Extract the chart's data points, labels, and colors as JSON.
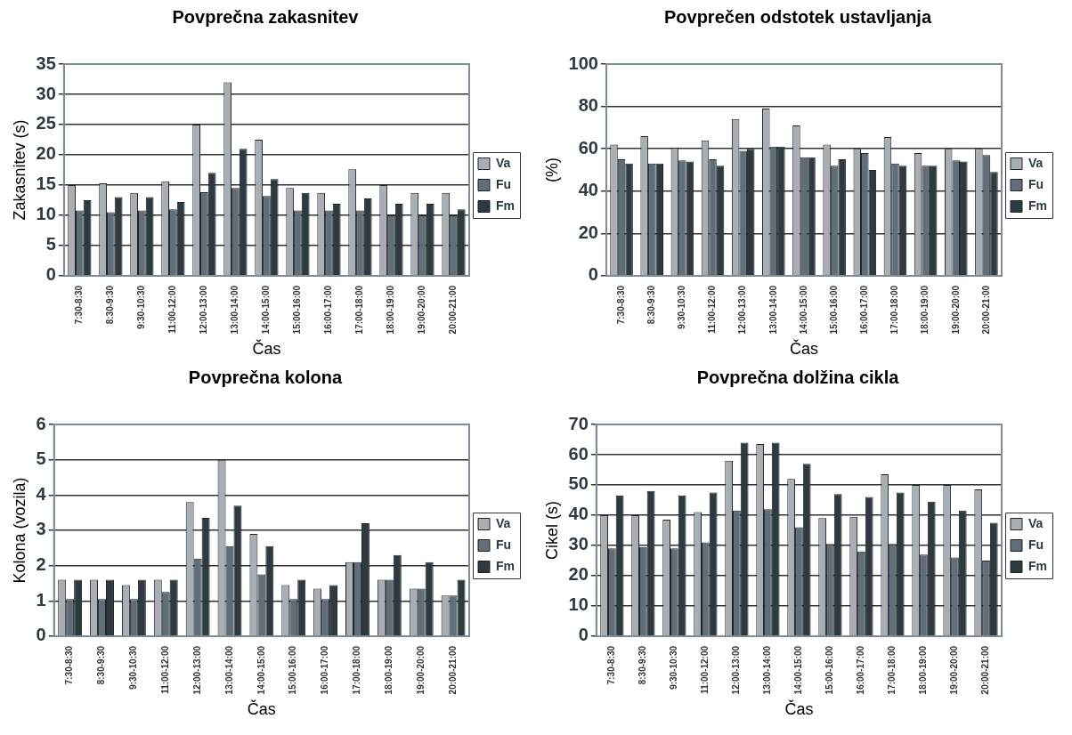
{
  "chart_data": [
    {
      "type": "bar",
      "title": "Povprečna zakasnitev",
      "xlabel": "Čas",
      "ylabel": "Zakasnitev (s)",
      "categories": [
        "7:30-8:30",
        "8:30-9:30",
        "9:30-10:30",
        "11:00-12:00",
        "12:00-13:00",
        "13:00-14:00",
        "14:00-15:00",
        "15:00-16:00",
        "16:00-17:00",
        "17:00-18:00",
        "18:00-19:00",
        "19:00-20:00",
        "20:00-21:00"
      ],
      "ylim": [
        0,
        35
      ],
      "yticks": [
        0,
        5,
        10,
        15,
        20,
        25,
        30,
        35
      ],
      "grid": "y",
      "legend": "right",
      "series": [
        {
          "name": "Va",
          "color": "#a9aeb3",
          "values": [
            15,
            15.3,
            13.7,
            15.6,
            25,
            32,
            22.5,
            14.5,
            13.7,
            17.6,
            15,
            13.7,
            13.7
          ]
        },
        {
          "name": "Fu",
          "color": "#5f6e78",
          "values": [
            10.8,
            10.5,
            10.8,
            11,
            13.8,
            14.5,
            13.2,
            10.8,
            10.8,
            10.8,
            10,
            10,
            10
          ]
        },
        {
          "name": "Fm",
          "color": "#2d3a40",
          "values": [
            12.5,
            13,
            13,
            12.2,
            17,
            21,
            16,
            13.7,
            11.9,
            12.8,
            11.9,
            11.9,
            11
          ]
        }
      ]
    },
    {
      "type": "bar",
      "title": "Povprečen odstotek ustavljanja",
      "xlabel": "Čas",
      "ylabel": "(%)",
      "categories": [
        "7:30-8:30",
        "8:30-9:30",
        "9:30-10:30",
        "11:00-12:00",
        "12:00-13:00",
        "13:00-14:00",
        "14:00-15:00",
        "15:00-16:00",
        "16:00-17:00",
        "17:00-18:00",
        "18:00-19:00",
        "19:00-20:00",
        "20:00-21:00"
      ],
      "ylim": [
        0,
        100
      ],
      "yticks": [
        0,
        20,
        40,
        60,
        80,
        100
      ],
      "grid": "y",
      "legend": "right",
      "series": [
        {
          "name": "Va",
          "color": "#a9aeb3",
          "values": [
            62,
            66,
            60.5,
            64,
            74,
            79,
            71,
            62,
            60,
            65.5,
            58,
            60,
            60
          ]
        },
        {
          "name": "Fu",
          "color": "#5f6e78",
          "values": [
            55,
            53,
            54.5,
            55,
            59,
            61,
            56,
            52,
            58,
            53,
            52,
            54.5,
            57
          ]
        },
        {
          "name": "Fm",
          "color": "#2d3a40",
          "values": [
            53,
            53,
            54,
            52,
            60,
            61,
            56,
            55,
            50,
            52,
            52,
            54,
            49
          ]
        }
      ]
    },
    {
      "type": "bar",
      "title": "Povprečna kolona",
      "xlabel": "Čas",
      "ylabel": "Kolona (vozila)",
      "categories": [
        "7:30-8:30",
        "8:30-9:30",
        "9:30-10:30",
        "11:00-12:00",
        "12:00-13:00",
        "13:00-14:00",
        "14:00-15:00",
        "15:00-16:00",
        "16:00-17:00",
        "17:00-18:00",
        "18:00-19:00",
        "19:00-20:00",
        "20:00-21:00"
      ],
      "ylim": [
        0,
        6
      ],
      "yticks": [
        0,
        1,
        2,
        3,
        4,
        5,
        6
      ],
      "grid": "y",
      "legend": "right",
      "series": [
        {
          "name": "Va",
          "color": "#a9aeb3",
          "values": [
            1.6,
            1.6,
            1.45,
            1.6,
            3.8,
            5,
            2.9,
            1.45,
            1.35,
            2.1,
            1.6,
            1.35,
            1.15
          ]
        },
        {
          "name": "Fu",
          "color": "#5f6e78",
          "values": [
            1.05,
            1.05,
            1.05,
            1.25,
            2.2,
            2.55,
            1.75,
            1.05,
            1.05,
            2.1,
            1.6,
            1.35,
            1.15
          ]
        },
        {
          "name": "Fm",
          "color": "#2d3a40",
          "values": [
            1.6,
            1.6,
            1.6,
            1.6,
            3.35,
            3.7,
            2.55,
            1.6,
            1.45,
            3.2,
            2.3,
            2.1,
            1.6
          ]
        }
      ]
    },
    {
      "type": "bar",
      "title": "Povprečna dolžina cikla",
      "xlabel": "Čas",
      "ylabel": "Cikel (s)",
      "categories": [
        "7:30-8:30",
        "8:30-9:30",
        "9:30-10:30",
        "11:00-12:00",
        "12:00-13:00",
        "13:00-14:00",
        "14:00-15:00",
        "15:00-16:00",
        "16:00-17:00",
        "17:00-18:00",
        "18:00-19:00",
        "19:00-20:00",
        "20:00-21:00"
      ],
      "ylim": [
        0,
        70
      ],
      "yticks": [
        0,
        10,
        20,
        30,
        40,
        50,
        60,
        70
      ],
      "grid": "y",
      "legend": "right",
      "series": [
        {
          "name": "Va",
          "color": "#a9aeb3",
          "values": [
            40,
            40,
            38.5,
            41,
            58,
            63.5,
            52,
            39,
            39.5,
            53.5,
            50,
            50,
            48.5
          ]
        },
        {
          "name": "Fu",
          "color": "#5f6e78",
          "values": [
            29,
            29.5,
            29,
            31,
            41.5,
            42,
            36,
            30.5,
            28,
            30.5,
            27,
            26,
            25
          ]
        },
        {
          "name": "Fm",
          "color": "#2d3a40",
          "values": [
            46.5,
            48,
            46.5,
            47.5,
            64,
            64,
            57,
            47,
            46,
            47.5,
            44.5,
            41.5,
            37.5
          ]
        }
      ]
    }
  ]
}
